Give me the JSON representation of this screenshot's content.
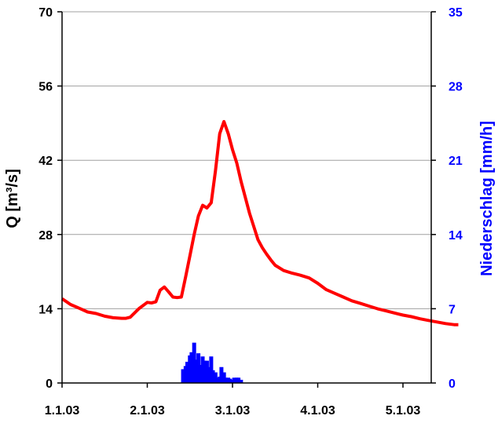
{
  "chart_data": {
    "type": "line+bar",
    "x_ticks": [
      "1.1.03",
      "2.1.03",
      "3.1.03",
      "4.1.03",
      "5.1.03"
    ],
    "x_range_days": [
      0,
      4.65
    ],
    "left_axis": {
      "label": "Q [m³/s]",
      "range": [
        0,
        70
      ],
      "ticks": [
        0,
        14,
        28,
        42,
        56,
        70
      ],
      "color": "#000000"
    },
    "right_axis": {
      "label": "Niederschlag [mm/h]",
      "range": [
        0,
        35
      ],
      "ticks": [
        0,
        7,
        14,
        21,
        28,
        35
      ],
      "color": "#0000ff"
    },
    "grid": "horizontal",
    "series": [
      {
        "type": "line",
        "axis": "left",
        "color": "#ff0000",
        "x": [
          0.0,
          0.1,
          0.2,
          0.3,
          0.4,
          0.5,
          0.6,
          0.7,
          0.75,
          0.8,
          0.9,
          1.0,
          1.05,
          1.1,
          1.15,
          1.2,
          1.25,
          1.3,
          1.35,
          1.4,
          1.45,
          1.5,
          1.55,
          1.6,
          1.65,
          1.7,
          1.75,
          1.8,
          1.85,
          1.9,
          1.95,
          2.0,
          2.05,
          2.1,
          2.15,
          2.2,
          2.25,
          2.3,
          2.35,
          2.4,
          2.45,
          2.5,
          2.6,
          2.7,
          2.8,
          2.9,
          3.0,
          3.1,
          3.2,
          3.3,
          3.4,
          3.5,
          3.6,
          3.7,
          3.8,
          3.9,
          4.0,
          4.1,
          4.2,
          4.3,
          4.4,
          4.5,
          4.6,
          4.65
        ],
        "y": [
          15.9,
          14.8,
          14.1,
          13.4,
          13.1,
          12.6,
          12.3,
          12.2,
          12.2,
          12.4,
          14.0,
          15.2,
          15.1,
          15.3,
          17.5,
          18.1,
          17.2,
          16.2,
          16.1,
          16.2,
          20.0,
          24.0,
          28.0,
          31.5,
          33.5,
          33.0,
          34.0,
          40.0,
          47.0,
          49.3,
          47.0,
          44.0,
          41.5,
          38.0,
          35.0,
          32.0,
          29.5,
          27.0,
          25.5,
          24.3,
          23.2,
          22.2,
          21.2,
          20.7,
          20.3,
          19.8,
          18.8,
          17.6,
          16.9,
          16.2,
          15.5,
          15.0,
          14.5,
          14.0,
          13.6,
          13.2,
          12.8,
          12.5,
          12.1,
          11.8,
          11.5,
          11.2,
          11.0,
          11.0
        ]
      },
      {
        "type": "bar",
        "axis": "right",
        "color": "#0000ff",
        "x": [
          1.42,
          1.45,
          1.47,
          1.5,
          1.52,
          1.55,
          1.57,
          1.6,
          1.62,
          1.65,
          1.67,
          1.7,
          1.72,
          1.75,
          1.77,
          1.8,
          1.82,
          1.85,
          1.87,
          1.9,
          1.92,
          1.95,
          1.97,
          2.0,
          2.02,
          2.05,
          2.07,
          2.1
        ],
        "y": [
          1.3,
          1.6,
          2.0,
          2.6,
          2.9,
          3.8,
          2.2,
          2.8,
          1.7,
          2.5,
          2.1,
          2.1,
          1.5,
          2.5,
          1.2,
          1.0,
          0.5,
          0.6,
          1.5,
          1.0,
          0.5,
          0.5,
          0.4,
          0.3,
          0.5,
          0.5,
          0.5,
          0.3
        ]
      }
    ]
  }
}
